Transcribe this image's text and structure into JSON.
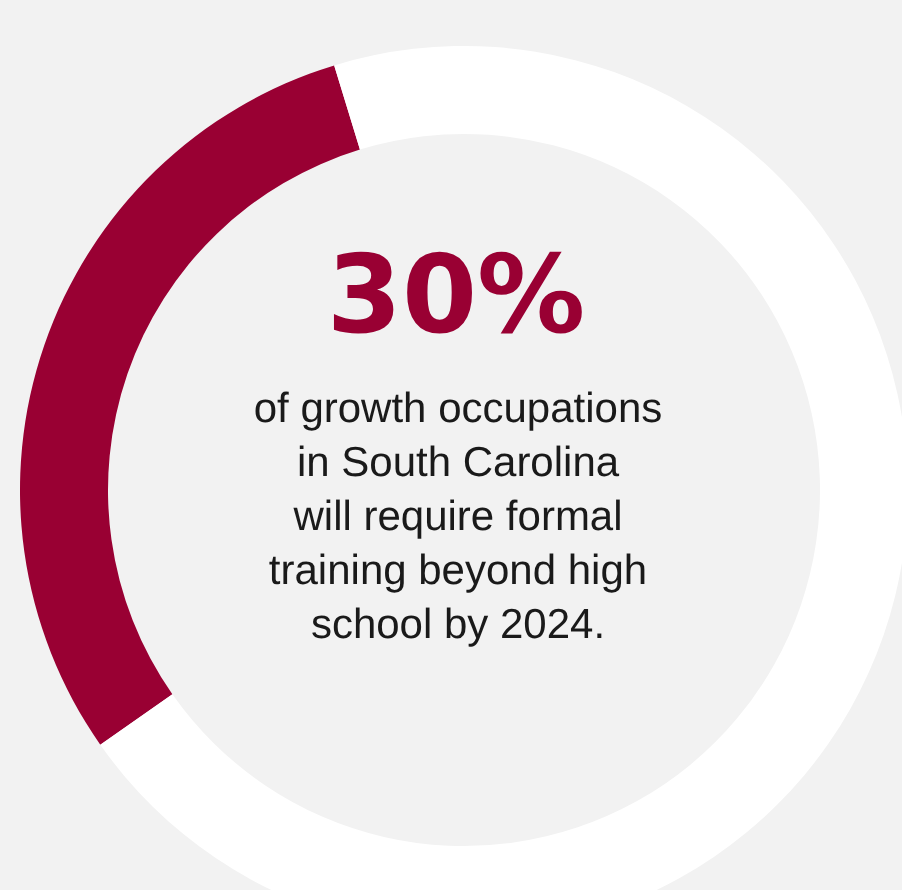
{
  "chart_data": {
    "type": "donut",
    "categories": [
      null,
      null
    ],
    "values": [
      30,
      70
    ],
    "colors": [
      "#990033",
      "#ffffff"
    ],
    "annotations": [
      "30%",
      "of growth occupations",
      "in South Carolina",
      "will require formal",
      "training beyond high",
      "school by 2024."
    ]
  }
}
